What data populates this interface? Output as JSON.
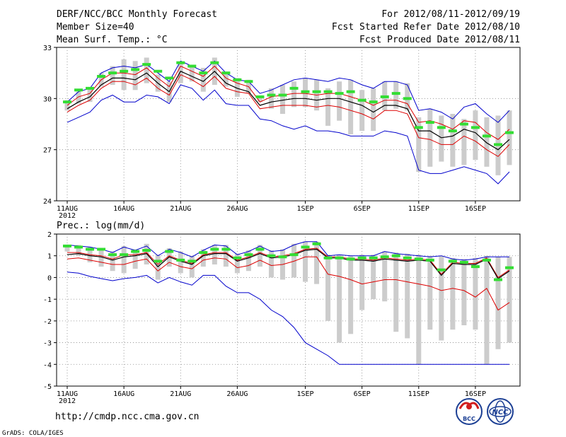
{
  "header": {
    "title": "DERF/NCC/BCC Monthly Forecast",
    "member_size": "Member Size=40",
    "variable": "Mean Surf. Temp.: °C",
    "period": "For 2012/08/11-2012/09/19",
    "fcst_started": "Fcst Started Refer Date 2012/08/10",
    "fcst_produced": "Fcst Produced Date 2012/08/11"
  },
  "footer": {
    "url": "http://cmdp.ncc.cma.gov.cn",
    "credit": "GrADS: COLA/IGES",
    "logo_left_text": "BCC",
    "logo_right_text": "NCC"
  },
  "colors": {
    "spread_bar": "#cccccc",
    "mean_marker": "#33dd33",
    "mean_line": "#000000",
    "std_line": "#dd0000",
    "extreme_line": "#0000cc",
    "grid": "#888888"
  },
  "x_axis": {
    "ticks": [
      {
        "day": 0,
        "label": "11AUG"
      },
      {
        "day": 5,
        "label": "16AUG"
      },
      {
        "day": 10,
        "label": "21AUG"
      },
      {
        "day": 15,
        "label": "26AUG"
      },
      {
        "day": 21,
        "label": "1SEP"
      },
      {
        "day": 26,
        "label": "6SEP"
      },
      {
        "day": 31,
        "label": "11SEP"
      },
      {
        "day": 36,
        "label": "16SEP"
      }
    ],
    "year_label": "2012",
    "range": [
      0,
      39
    ]
  },
  "chart_data": [
    {
      "type": "line",
      "title": "Mean Surf. Temp.: °C",
      "ylabel": "°C",
      "ylim": [
        24,
        33
      ],
      "yticks": [
        24,
        27,
        30,
        33
      ],
      "grid": true,
      "x": [
        0,
        1,
        2,
        3,
        4,
        5,
        6,
        7,
        8,
        9,
        10,
        11,
        12,
        13,
        14,
        15,
        16,
        17,
        18,
        19,
        20,
        21,
        22,
        23,
        24,
        25,
        26,
        27,
        28,
        29,
        30,
        31,
        32,
        33,
        34,
        35,
        36,
        37,
        38,
        39
      ],
      "series": [
        {
          "name": "max",
          "color": "blue",
          "values": [
            29.8,
            30.4,
            30.6,
            31.5,
            31.8,
            31.9,
            31.8,
            32.0,
            31.5,
            31.0,
            32.2,
            31.9,
            31.6,
            32.2,
            31.5,
            31.1,
            31.0,
            30.3,
            30.5,
            30.8,
            31.1,
            31.2,
            31.1,
            31.0,
            31.2,
            31.1,
            30.8,
            30.6,
            31.0,
            31.0,
            30.8,
            29.3,
            29.4,
            29.2,
            28.8,
            29.5,
            29.7,
            29.1,
            28.6,
            29.3
          ]
        },
        {
          "name": "mean+std",
          "color": "red",
          "values": [
            29.6,
            30.1,
            30.3,
            31.1,
            31.5,
            31.5,
            31.4,
            31.8,
            31.2,
            30.7,
            31.9,
            31.6,
            31.3,
            31.9,
            31.2,
            30.9,
            30.7,
            29.8,
            30.1,
            30.2,
            30.3,
            30.3,
            30.2,
            30.3,
            30.3,
            30.1,
            29.9,
            29.6,
            29.9,
            29.9,
            29.7,
            28.6,
            28.7,
            28.5,
            28.2,
            28.7,
            28.6,
            28.0,
            27.6,
            28.2
          ]
        },
        {
          "name": "mean",
          "color": "black",
          "values": [
            29.4,
            29.8,
            30.1,
            30.8,
            31.2,
            31.2,
            31.1,
            31.5,
            30.9,
            30.4,
            31.6,
            31.3,
            31.0,
            31.6,
            30.9,
            30.6,
            30.4,
            29.6,
            29.8,
            29.9,
            30.0,
            30.0,
            29.9,
            30.0,
            30.0,
            29.8,
            29.6,
            29.2,
            29.6,
            29.6,
            29.4,
            28.1,
            28.1,
            27.7,
            27.8,
            28.2,
            28.0,
            27.4,
            27.0,
            27.6
          ]
        },
        {
          "name": "mean-std",
          "color": "red",
          "values": [
            29.2,
            29.6,
            29.9,
            30.6,
            31.0,
            31.0,
            30.8,
            31.2,
            30.6,
            30.2,
            31.4,
            31.1,
            30.7,
            31.3,
            30.6,
            30.4,
            30.3,
            29.4,
            29.5,
            29.6,
            29.6,
            29.6,
            29.5,
            29.6,
            29.5,
            29.3,
            29.1,
            28.8,
            29.3,
            29.3,
            29.1,
            27.7,
            27.6,
            27.3,
            27.3,
            27.8,
            27.5,
            27.0,
            26.6,
            27.3
          ]
        },
        {
          "name": "min",
          "color": "blue",
          "values": [
            28.6,
            28.9,
            29.2,
            29.9,
            30.2,
            29.8,
            29.8,
            30.2,
            30.1,
            29.7,
            30.8,
            30.6,
            29.9,
            30.5,
            29.7,
            29.6,
            29.6,
            28.8,
            28.7,
            28.4,
            28.2,
            28.4,
            28.1,
            28.1,
            28.0,
            27.8,
            27.8,
            27.8,
            28.1,
            28.0,
            27.8,
            25.8,
            25.6,
            25.6,
            25.8,
            26.0,
            25.8,
            25.6,
            25.0,
            25.7
          ]
        },
        {
          "name": "mean-marker",
          "color": "green",
          "values": [
            29.8,
            30.5,
            30.6,
            31.3,
            31.5,
            31.6,
            31.7,
            32.0,
            31.6,
            31.2,
            32.1,
            31.9,
            31.5,
            32.1,
            31.5,
            31.1,
            31.0,
            30.1,
            30.2,
            30.2,
            30.6,
            30.4,
            30.4,
            30.4,
            30.3,
            30.4,
            29.9,
            29.8,
            30.1,
            30.3,
            30.0,
            28.3,
            28.6,
            28.3,
            28.1,
            28.5,
            28.3,
            27.8,
            27.3,
            28.0
          ]
        },
        {
          "name": "spread-top",
          "color": "gray",
          "values": [
            29.9,
            30.4,
            30.6,
            31.5,
            31.9,
            32.3,
            32.2,
            32.4,
            31.4,
            31.0,
            32.1,
            31.9,
            31.8,
            32.4,
            31.5,
            31.2,
            31.1,
            30.1,
            30.6,
            30.8,
            31.0,
            31.2,
            31.1,
            30.6,
            31.0,
            31.1,
            30.5,
            30.6,
            31.0,
            31.0,
            30.9,
            28.9,
            29.4,
            29.0,
            29.1,
            28.8,
            29.3,
            28.9,
            29.0,
            29.3
          ]
        },
        {
          "name": "spread-bottom",
          "color": "gray",
          "values": [
            29.3,
            29.7,
            29.8,
            30.7,
            30.8,
            30.5,
            30.5,
            30.9,
            30.4,
            29.8,
            30.9,
            31.0,
            30.4,
            30.8,
            30.7,
            30.1,
            30.3,
            29.8,
            29.4,
            29.1,
            29.5,
            29.5,
            29.3,
            28.4,
            28.7,
            27.9,
            28.1,
            28.1,
            29.3,
            29.4,
            29.3,
            25.7,
            26.0,
            26.3,
            26.0,
            26.1,
            26.4,
            26.0,
            25.5,
            26.1
          ]
        }
      ]
    },
    {
      "type": "line",
      "title": "Prec.: log(mm/d)",
      "ylabel": "log(mm/d)",
      "ylim": [
        -5,
        2
      ],
      "yticks": [
        -5,
        -4,
        -3,
        -2,
        -1,
        0,
        1,
        2
      ],
      "grid": true,
      "x": [
        0,
        1,
        2,
        3,
        4,
        5,
        6,
        7,
        8,
        9,
        10,
        11,
        12,
        13,
        14,
        15,
        16,
        17,
        18,
        19,
        20,
        21,
        22,
        23,
        24,
        25,
        26,
        27,
        28,
        29,
        30,
        31,
        32,
        33,
        34,
        35,
        36,
        37,
        38,
        39
      ],
      "series": [
        {
          "name": "max",
          "color": "blue",
          "values": [
            1.5,
            1.45,
            1.4,
            1.3,
            1.15,
            1.4,
            1.25,
            1.45,
            1.0,
            1.3,
            1.15,
            0.95,
            1.25,
            1.5,
            1.45,
            1.05,
            1.2,
            1.45,
            1.2,
            1.25,
            1.5,
            1.65,
            1.65,
            1.0,
            1.05,
            1.0,
            1.0,
            1.0,
            1.2,
            1.1,
            1.05,
            1.0,
            0.95,
            1.0,
            0.85,
            0.8,
            0.85,
            0.95,
            0.95,
            0.95
          ]
        },
        {
          "name": "mean",
          "color": "black",
          "values": [
            1.05,
            1.1,
            1.0,
            0.95,
            0.8,
            0.95,
            1.0,
            1.1,
            0.5,
            0.95,
            0.75,
            0.6,
            1.0,
            1.1,
            1.1,
            0.75,
            0.9,
            1.1,
            0.9,
            0.95,
            1.05,
            1.25,
            1.3,
            0.9,
            0.9,
            0.8,
            0.8,
            0.75,
            0.85,
            0.8,
            0.75,
            0.8,
            0.75,
            0.1,
            0.65,
            0.6,
            0.6,
            0.85,
            -0.05,
            0.3
          ]
        },
        {
          "name": "mean+std",
          "color": "red",
          "values": [
            1.15,
            1.15,
            1.05,
            1.0,
            0.85,
            1.05,
            1.05,
            1.15,
            0.6,
            1.0,
            0.8,
            0.65,
            1.05,
            1.15,
            1.15,
            0.8,
            0.95,
            1.15,
            0.95,
            1.0,
            1.1,
            1.3,
            1.35,
            0.95,
            0.95,
            0.85,
            0.85,
            0.8,
            0.9,
            0.85,
            0.8,
            0.85,
            0.8,
            0.15,
            0.7,
            0.65,
            0.65,
            0.9,
            0.0,
            0.35
          ]
        },
        {
          "name": "mean-std",
          "color": "red",
          "values": [
            0.85,
            0.9,
            0.8,
            0.7,
            0.6,
            0.6,
            0.75,
            0.85,
            0.3,
            0.7,
            0.5,
            0.4,
            0.8,
            0.9,
            0.85,
            0.45,
            0.55,
            0.8,
            0.55,
            0.6,
            0.75,
            0.95,
            0.95,
            0.15,
            0.05,
            -0.1,
            -0.3,
            -0.2,
            -0.1,
            -0.1,
            -0.2,
            -0.3,
            -0.4,
            -0.6,
            -0.5,
            -0.6,
            -0.9,
            -0.5,
            -1.5,
            -1.15
          ]
        },
        {
          "name": "min",
          "color": "blue",
          "values": [
            0.25,
            0.2,
            0.05,
            -0.05,
            -0.15,
            -0.05,
            0.0,
            0.1,
            -0.25,
            0.0,
            -0.2,
            -0.35,
            0.1,
            0.1,
            -0.4,
            -0.7,
            -0.7,
            -1.0,
            -1.5,
            -1.8,
            -2.3,
            -3.0,
            -3.3,
            -3.6,
            -4.0,
            -4.0,
            -4.0,
            -4.0,
            -4.0,
            -4.0,
            -4.0,
            -4.0,
            -4.0,
            -4.0,
            -4.0,
            -4.0,
            -4.0,
            -4.0,
            -4.0,
            -4.0
          ]
        },
        {
          "name": "mean-marker",
          "color": "green",
          "values": [
            1.45,
            1.4,
            1.3,
            1.3,
            1.05,
            1.05,
            1.2,
            1.25,
            0.75,
            1.2,
            0.8,
            0.75,
            1.15,
            1.3,
            1.3,
            0.9,
            1.05,
            1.3,
            1.0,
            0.95,
            1.05,
            1.4,
            1.55,
            0.9,
            0.9,
            0.85,
            0.9,
            0.9,
            0.95,
            1.0,
            0.9,
            0.85,
            0.8,
            0.35,
            0.75,
            0.7,
            0.5,
            0.8,
            -0.1,
            0.45
          ]
        },
        {
          "name": "spread-top",
          "color": "gray",
          "values": [
            1.5,
            1.5,
            1.4,
            1.35,
            1.2,
            1.45,
            1.3,
            1.55,
            1.05,
            1.35,
            1.2,
            1.0,
            1.3,
            1.5,
            1.5,
            1.1,
            1.25,
            1.5,
            1.25,
            1.3,
            1.55,
            1.65,
            1.65,
            1.05,
            1.05,
            1.0,
            1.05,
            1.05,
            1.2,
            1.15,
            1.1,
            1.05,
            1.0,
            1.0,
            0.9,
            0.85,
            0.9,
            1.0,
            0.95,
            0.95
          ]
        },
        {
          "name": "spread-bottom",
          "color": "gray",
          "values": [
            1.2,
            1.0,
            0.7,
            0.5,
            0.3,
            0.2,
            0.4,
            0.6,
            -0.1,
            0.5,
            0.2,
            0.0,
            0.5,
            0.6,
            0.5,
            0.2,
            0.3,
            0.5,
            0.0,
            -0.1,
            0.0,
            -0.2,
            -0.3,
            -2.0,
            -3.0,
            -2.6,
            -1.5,
            -1.0,
            -1.1,
            -2.5,
            -2.8,
            -4.0,
            -2.4,
            -2.9,
            -2.4,
            -2.2,
            -2.4,
            -4.0,
            -3.3,
            -3.0
          ]
        }
      ]
    }
  ]
}
